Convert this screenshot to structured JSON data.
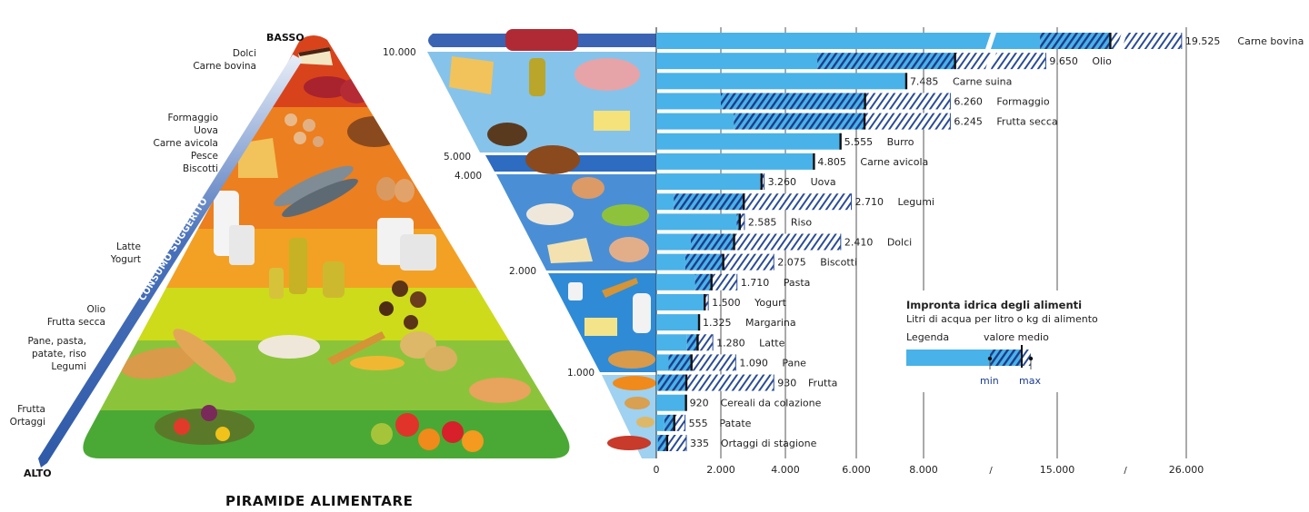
{
  "pyramid": {
    "title": "PIRAMIDE ALIMENTARE",
    "top_label": "BASSO",
    "bottom_label": "ALTO",
    "arrow_label": "CONSUMO SUGGERITO",
    "groups": [
      {
        "lines": [
          "Dolci",
          "Carne bovina"
        ]
      },
      {
        "lines": [
          "Formaggio",
          "Uova",
          "Carne avicola",
          "Pesce",
          "Biscotti"
        ]
      },
      {
        "lines": [
          "Latte",
          "Yogurt"
        ]
      },
      {
        "lines": [
          "Olio",
          "Frutta secca"
        ]
      },
      {
        "lines": [
          "Pane, pasta,",
          "patate, riso",
          "Legumi"
        ]
      },
      {
        "lines": [
          "Frutta",
          "Ortaggi"
        ]
      }
    ],
    "band_colors": [
      "#d8431c",
      "#ec7f1f",
      "#f2a124",
      "#cddb1b",
      "#8bc43a",
      "#4aa934"
    ]
  },
  "funnel": {
    "levels": [
      "10.000",
      "5.000",
      "4.000",
      "2.000",
      "1.000"
    ]
  },
  "chart_data": {
    "type": "bar",
    "title": "Impronta idrica degli alimenti",
    "subtitle": "Litri di acqua per litro o kg di alimento",
    "xlabel": "",
    "ylabel": "",
    "x_ticks": [
      {
        "value": 0,
        "label": "0"
      },
      {
        "value": 2000,
        "label": "2.000"
      },
      {
        "value": 4000,
        "label": "4.000"
      },
      {
        "value": 6000,
        "label": "6.000"
      },
      {
        "value": 8000,
        "label": "8.000"
      },
      {
        "value": 15000,
        "label": "15.000"
      },
      {
        "value": 26000,
        "label": "26.000"
      }
    ],
    "axis_break_symbol": "/",
    "xlim": [
      0,
      26000
    ],
    "series": [
      {
        "name": "Carne bovina",
        "mean": 19525,
        "label": "19.525",
        "min": 14100,
        "max": 25600
      },
      {
        "name": "Olio",
        "mean": 9650,
        "label": "9.650",
        "min": 4900,
        "max": 14400
      },
      {
        "name": "Carne suina",
        "mean": 7485,
        "label": "7.485"
      },
      {
        "name": "Formaggio",
        "mean": 6260,
        "label": "6.260",
        "min": 2000,
        "max": 9400
      },
      {
        "name": "Frutta secca",
        "mean": 6245,
        "label": "6.245",
        "min": 2400,
        "max": 9400
      },
      {
        "name": "Burro",
        "mean": 5555,
        "label": "5.555"
      },
      {
        "name": "Carne avicola",
        "mean": 4805,
        "label": "4.805"
      },
      {
        "name": "Uova",
        "mean": 3260,
        "label": "3.260",
        "min": 3220,
        "max": 3340
      },
      {
        "name": "Legumi",
        "mean": 2710,
        "label": "2.710",
        "min": 540,
        "max": 5860
      },
      {
        "name": "Riso",
        "mean": 2585,
        "label": "2.585",
        "min": 2490,
        "max": 2730
      },
      {
        "name": "Dolci",
        "mean": 2410,
        "label": "2.410",
        "min": 1070,
        "max": 5560
      },
      {
        "name": "Biscotti",
        "mean": 2075,
        "label": "2.075",
        "min": 900,
        "max": 3640
      },
      {
        "name": "Pasta",
        "mean": 1710,
        "label": "1.710",
        "min": 1200,
        "max": 2500
      },
      {
        "name": "Yogurt",
        "mean": 1500,
        "label": "1.500",
        "min": 1470,
        "max": 1610
      },
      {
        "name": "Margarina",
        "mean": 1325,
        "label": "1.325"
      },
      {
        "name": "Latte",
        "mean": 1280,
        "label": "1.280",
        "min": 950,
        "max": 1750
      },
      {
        "name": "Pane",
        "mean": 1090,
        "label": "1.090",
        "min": 380,
        "max": 2460
      },
      {
        "name": "Frutta",
        "mean": 930,
        "label": "930",
        "min": 50,
        "max": 3640
      },
      {
        "name": "Cereali da colazione",
        "mean": 920,
        "label": "920"
      },
      {
        "name": "Patate",
        "mean": 555,
        "label": "555",
        "min": 250,
        "max": 890
      },
      {
        "name": "Ortaggi di stagione",
        "mean": 335,
        "label": "335",
        "min": 50,
        "max": 930
      }
    ],
    "legend": {
      "heading": "Legenda",
      "mean_label": "valore medio",
      "min_label": "min",
      "max_label": "max"
    },
    "colors": {
      "bar": "#49b2e8",
      "hatch": "#1d3c8c",
      "mean_line": "#111111"
    },
    "grid": true
  }
}
